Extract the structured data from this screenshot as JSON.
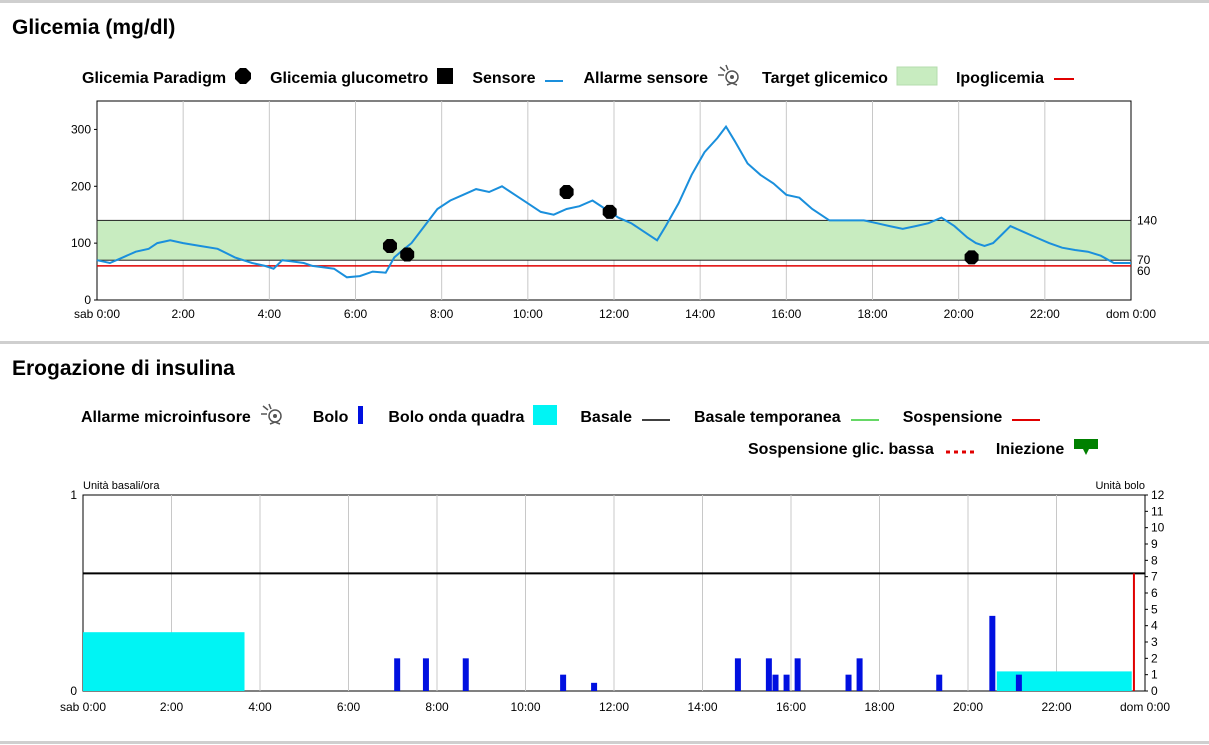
{
  "glucose": {
    "title": "Glicemia (mg/dl)",
    "legend": {
      "paradigm": "Glicemia Paradigm",
      "glucometer": "Glicemia glucometro",
      "sensor": "Sensore",
      "sensor_alarm": "Allarme sensore",
      "target": "Target glicemico",
      "hypo": "Ipoglicemia"
    },
    "colors": {
      "sensor": "#1a8fdc",
      "target_fill": "#c8ecc0",
      "hypo": "#e00000"
    }
  },
  "insulin": {
    "title": "Erogazione di insulina",
    "legend": {
      "pump_alarm": "Allarme microinfusore",
      "bolus": "Bolo",
      "square_bolus": "Bolo onda quadra",
      "basal": "Basale",
      "temp_basal": "Basale temporanea",
      "suspend": "Sospensione",
      "suspend_low": "Sospensione glic. bassa",
      "injection": "Iniezione"
    },
    "colors": {
      "bolus": "#0010e0",
      "square": "#00f4f4",
      "basal": "#000000",
      "temp_basal": "#33cc33",
      "suspend": "#e00000",
      "injection": "#008000"
    }
  },
  "chart_data": [
    {
      "type": "line",
      "title": "Glicemia (mg/dl)",
      "xlabel": "",
      "ylabel": "",
      "x_ticks": [
        "sab 0:00",
        "2:00",
        "4:00",
        "6:00",
        "8:00",
        "10:00",
        "12:00",
        "14:00",
        "16:00",
        "18:00",
        "20:00",
        "22:00",
        "dom 0:00"
      ],
      "xlim": [
        0,
        24
      ],
      "ylim": [
        0,
        350
      ],
      "y_ticks": [
        0,
        100,
        200,
        300
      ],
      "right_ticks": [
        60,
        70,
        140
      ],
      "target_range": [
        70,
        140
      ],
      "hypo_threshold": 60,
      "grid": true,
      "series": [
        {
          "name": "Sensore",
          "x": [
            0,
            0.3,
            0.6,
            0.9,
            1.2,
            1.4,
            1.7,
            2,
            2.4,
            2.8,
            3.2,
            3.6,
            3.9,
            4.1,
            4.3,
            4.5,
            4.8,
            5,
            5.2,
            5.5,
            5.8,
            6.1,
            6.4,
            6.7,
            6.9,
            7.1,
            7.3,
            7.6,
            7.9,
            8.2,
            8.5,
            8.8,
            9.1,
            9.4,
            9.7,
            10,
            10.3,
            10.6,
            10.9,
            11.2,
            11.5,
            11.8,
            12.1,
            12.4,
            12.7,
            13,
            13.2,
            13.5,
            13.8,
            14.1,
            14.4,
            14.6,
            14.8,
            15.1,
            15.4,
            15.7,
            16,
            16.3,
            16.6,
            17,
            17.4,
            17.8,
            18.1,
            18.4,
            18.7,
            19,
            19.3,
            19.6,
            19.9,
            20.2,
            20.4,
            20.6,
            20.8,
            21,
            21.2,
            21.5,
            21.8,
            22.1,
            22.4,
            22.7,
            23,
            23.3,
            23.6,
            24
          ],
          "y": [
            70,
            65,
            75,
            85,
            90,
            100,
            105,
            100,
            95,
            90,
            75,
            65,
            60,
            55,
            70,
            68,
            65,
            60,
            58,
            55,
            40,
            42,
            50,
            48,
            75,
            88,
            100,
            130,
            160,
            175,
            185,
            195,
            190,
            200,
            185,
            170,
            155,
            150,
            160,
            165,
            175,
            160,
            145,
            135,
            120,
            105,
            130,
            170,
            220,
            260,
            285,
            305,
            280,
            240,
            220,
            205,
            185,
            180,
            160,
            140,
            140,
            140,
            135,
            130,
            125,
            130,
            135,
            145,
            130,
            110,
            100,
            95,
            100,
            115,
            130,
            120,
            110,
            100,
            92,
            88,
            85,
            78,
            65,
            65
          ]
        }
      ],
      "paradigm_points": {
        "x": [
          6.8,
          10.9,
          11.9
        ],
        "y": [
          95,
          190,
          155
        ]
      },
      "glucometer_points": {
        "x": [
          7.2,
          20.3
        ],
        "y": [
          80,
          75
        ]
      }
    },
    {
      "type": "bar",
      "title": "Erogazione di insulina",
      "left_axis_label": "Unità basali/ora",
      "right_axis_label": "Unità bolo",
      "x_ticks": [
        "sab 0:00",
        "2:00",
        "4:00",
        "6:00",
        "8:00",
        "10:00",
        "12:00",
        "14:00",
        "16:00",
        "18:00",
        "20:00",
        "22:00",
        "dom 0:00"
      ],
      "xlim": [
        0,
        24
      ],
      "left_ylim": [
        0,
        1
      ],
      "left_ticks": [
        0,
        1
      ],
      "right_ylim": [
        0,
        12
      ],
      "right_ticks": [
        0,
        1,
        2,
        3,
        4,
        5,
        6,
        7,
        8,
        9,
        10,
        11,
        12
      ],
      "grid": true,
      "basal_rate": 0.6,
      "bolus_bars": {
        "x": [
          7.1,
          7.75,
          8.65,
          10.85,
          11.55,
          14.8,
          15.5,
          15.65,
          15.9,
          16.15,
          17.3,
          17.55,
          19.35,
          20.55,
          21.15
        ],
        "y": [
          2,
          2,
          2,
          1,
          0.5,
          2,
          2,
          1,
          1,
          2,
          1,
          2,
          1,
          4.6,
          1
        ]
      },
      "square_bolus": [
        {
          "x_start": 0,
          "x_end": 3.65,
          "units": 3.6
        },
        {
          "x_start": 20.65,
          "x_end": 23.7,
          "units": 1.2
        }
      ],
      "suspension_x": 23.75
    }
  ]
}
